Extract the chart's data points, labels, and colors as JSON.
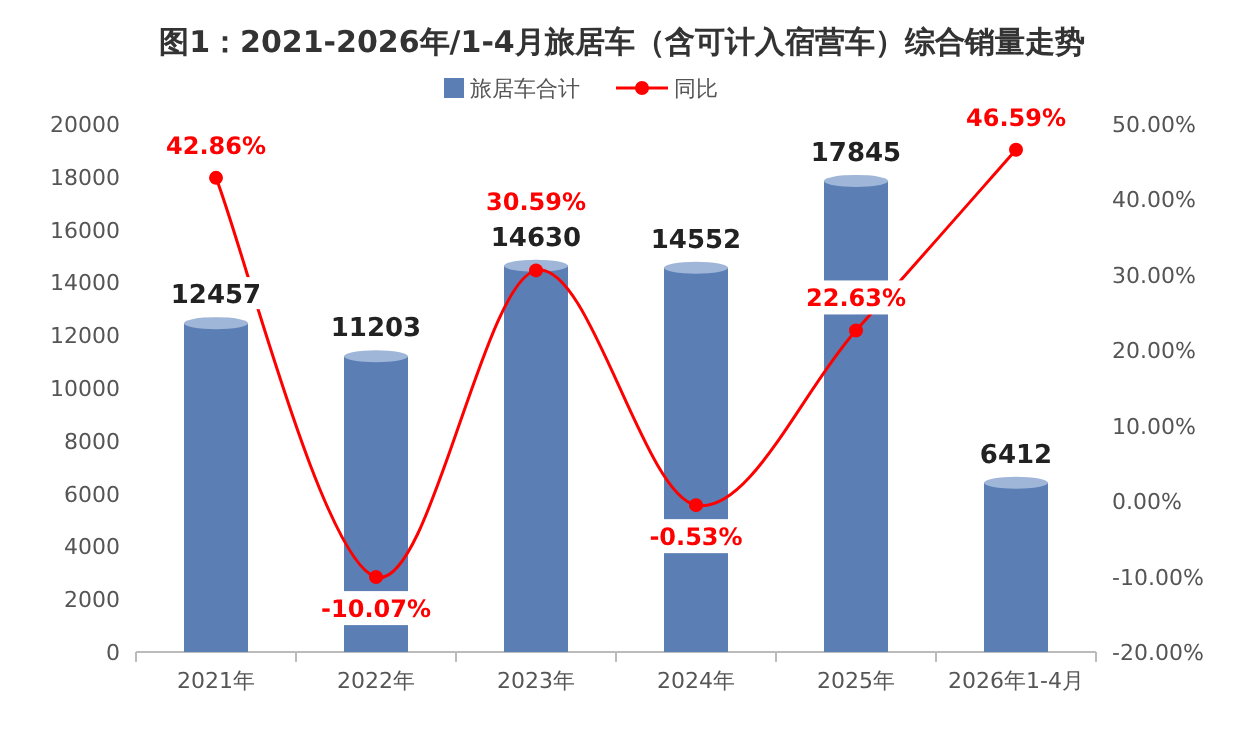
{
  "chart_data": {
    "type": "bar",
    "title": "图1：2021-2026年/1-4月旅居车（含可计入宿营车）综合销量走势",
    "categories": [
      "2021年",
      "2022年",
      "2023年",
      "2024年",
      "2025年",
      "2026年1-4月"
    ],
    "series": [
      {
        "name": "旅居车合计",
        "color": "#5b7fb5",
        "values": [
          12457,
          11203,
          14630,
          14552,
          17845,
          6412
        ],
        "value_labels": [
          "12457",
          "11203",
          "14630",
          "14552",
          "17845",
          "6412"
        ]
      },
      {
        "name": "同比",
        "type": "line",
        "axis": "y2",
        "color": "#ff0000",
        "marker": "circle",
        "values": [
          42.86,
          -10.07,
          30.59,
          -0.53,
          22.63,
          46.59
        ],
        "value_labels": [
          "42.86%",
          "-10.07%",
          "30.59%",
          "-0.53%",
          "22.63%",
          "46.59%"
        ]
      }
    ],
    "ylim": [
      0,
      20000
    ],
    "yticks": [
      0,
      2000,
      4000,
      6000,
      8000,
      10000,
      12000,
      14000,
      16000,
      18000,
      20000
    ],
    "y2lim": [
      -20,
      50
    ],
    "y2ticks": [
      {
        "value": -20,
        "label": "-20.00%"
      },
      {
        "value": -10,
        "label": "-10.00%"
      },
      {
        "value": 0,
        "label": "0.00%"
      },
      {
        "value": 10,
        "label": "10.00%"
      },
      {
        "value": 20,
        "label": "20.00%"
      },
      {
        "value": 30,
        "label": "30.00%"
      },
      {
        "value": 40,
        "label": "40.00%"
      },
      {
        "value": 50,
        "label": "50.00%"
      }
    ],
    "grid": false,
    "legend": "top"
  }
}
